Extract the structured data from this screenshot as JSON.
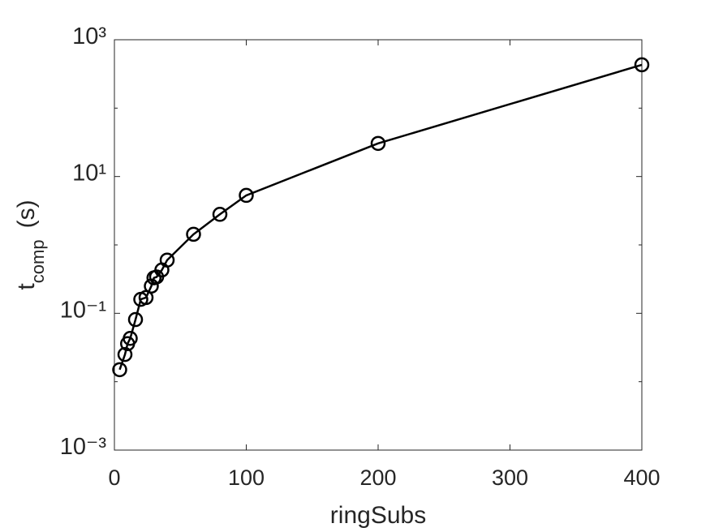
{
  "chart_data": {
    "type": "line",
    "xlabel": "ringSubs",
    "ylabel": {
      "text": "t",
      "subscript": "comp",
      "unit": "(s)"
    },
    "x": [
      4,
      8,
      10,
      12,
      16,
      20,
      24,
      28,
      30,
      32,
      36,
      40,
      60,
      80,
      100,
      200,
      400
    ],
    "series": [
      {
        "color": "#000000",
        "marker": "circle",
        "values": [
          0.015,
          0.025,
          0.036,
          0.043,
          0.081,
          0.16,
          0.17,
          0.25,
          0.33,
          0.34,
          0.43,
          0.6,
          1.43,
          2.8,
          5.3,
          30.5,
          430
        ]
      }
    ],
    "xlim": [
      0,
      400
    ],
    "xticks": [
      0,
      100,
      200,
      300,
      400
    ],
    "ylim": [
      0.001,
      1000
    ],
    "ylog": true,
    "yticks": [
      {
        "value": 0.001,
        "label": "10⁻³"
      },
      {
        "value": 0.1,
        "label": "10⁻¹"
      },
      {
        "value": 10,
        "label": "10¹"
      },
      {
        "value": 1000,
        "label": "10³"
      }
    ],
    "yminorticks": [
      0.01,
      1,
      100
    ],
    "box": true
  }
}
